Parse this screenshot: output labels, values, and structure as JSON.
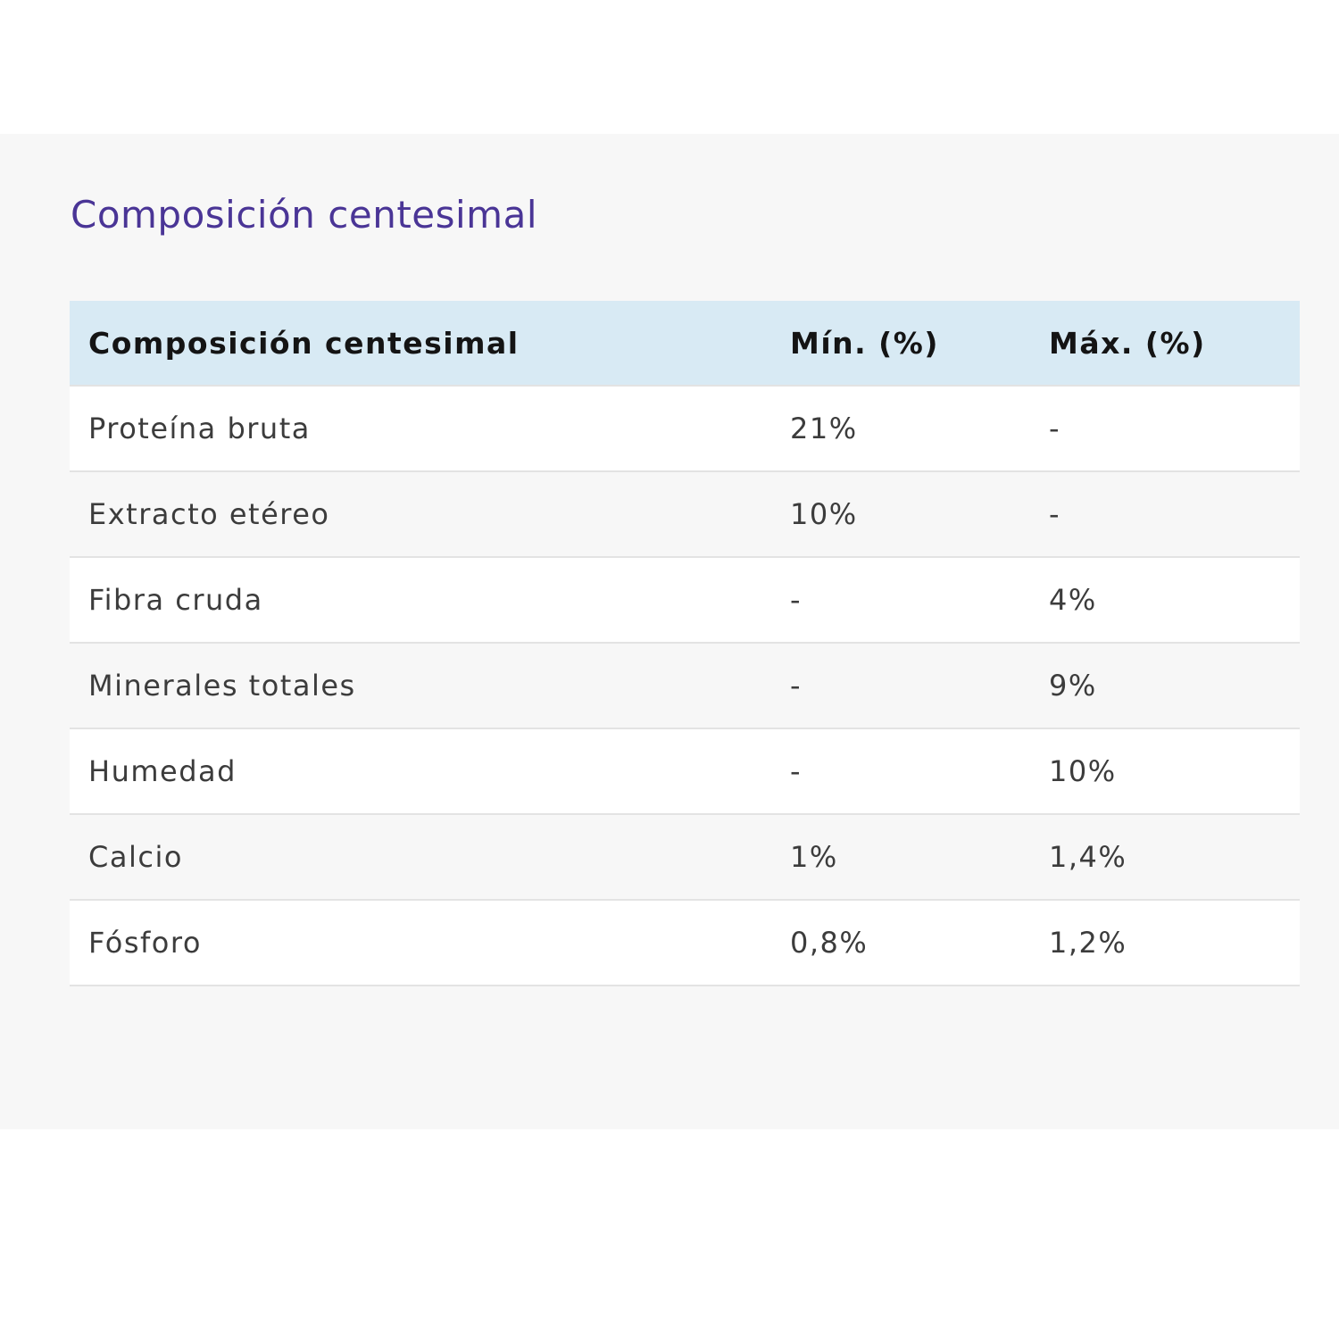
{
  "section": {
    "title": "Composición centesimal"
  },
  "table": {
    "headers": [
      "Composición centesimal",
      "Mín. (%)",
      "Máx. (%)"
    ],
    "rows": [
      [
        "Proteína bruta",
        "21%",
        "-"
      ],
      [
        "Extracto etéreo",
        "10%",
        "-"
      ],
      [
        "Fibra cruda",
        "-",
        "4%"
      ],
      [
        "Minerales totales",
        "-",
        "9%"
      ],
      [
        "Humedad",
        "-",
        "10%"
      ],
      [
        "Calcio",
        "1%",
        "1,4%"
      ],
      [
        "Fósforo",
        "0,8%",
        "1,2%"
      ]
    ]
  },
  "colors": {
    "title": "#4a3596",
    "header_bg": "#d8eaf4",
    "panel_bg": "#f7f7f7"
  }
}
